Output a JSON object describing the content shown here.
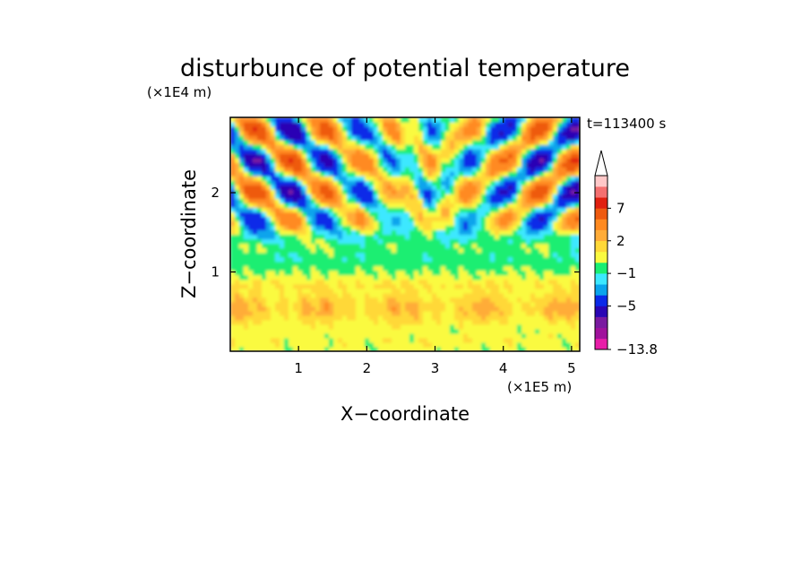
{
  "chart_data": {
    "type": "heatmap",
    "title": "disturbunce of potential temperature",
    "xlabel": "X−coordinate",
    "ylabel": "Z−coordinate",
    "x_unit": "(×1E5 m)",
    "y_unit": "(×1E4 m)",
    "time_label": "t=113400 s",
    "xlim": [
      0,
      5.12
    ],
    "ylim": [
      0,
      2.95
    ],
    "x_ticks": [
      {
        "value": 1,
        "label": "1"
      },
      {
        "value": 2,
        "label": "2"
      },
      {
        "value": 3,
        "label": "3"
      },
      {
        "value": 4,
        "label": "4"
      },
      {
        "value": 5,
        "label": "5"
      }
    ],
    "y_ticks": [
      {
        "value": 1,
        "label": "1"
      },
      {
        "value": 2,
        "label": "2"
      }
    ],
    "colorbar": {
      "levels": [
        -13.8,
        -11,
        -9,
        -7,
        -5,
        -3,
        -2,
        -1,
        0,
        1,
        2,
        3,
        5,
        7,
        9,
        11
      ],
      "labels": [
        {
          "value": 7,
          "label": "7"
        },
        {
          "value": 2,
          "label": "2"
        },
        {
          "value": -1,
          "label": "−1"
        },
        {
          "value": -5,
          "label": "−5"
        },
        {
          "value": -13.8,
          "label": "−13.8"
        }
      ],
      "colors": [
        "#e81ea8",
        "#a0129c",
        "#7a1aa0",
        "#2a06b4",
        "#0a2ae8",
        "#0aa4ec",
        "#3ce8ff",
        "#1aee72",
        "#fafa40",
        "#ffd838",
        "#ffac38",
        "#ff8a20",
        "#ee5a10",
        "#e02010",
        "#f47070",
        "#ffc8c8"
      ],
      "extend": "max"
    }
  }
}
